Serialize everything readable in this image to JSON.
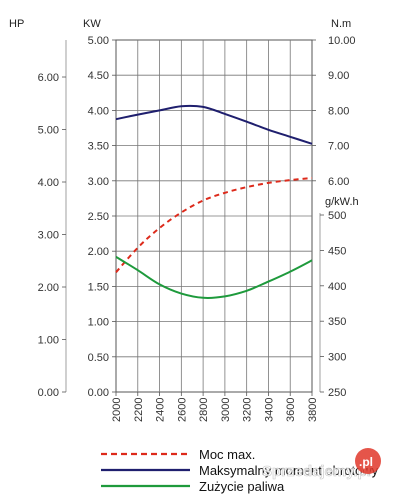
{
  "chart_data": {
    "type": "line",
    "x_title": "",
    "x_ticks": [
      "2000",
      "2200",
      "2400",
      "2600",
      "2800",
      "3000",
      "3200",
      "3400",
      "3600",
      "3800"
    ],
    "x": [
      2000,
      2200,
      2400,
      2600,
      2800,
      3000,
      3200,
      3400,
      3600,
      3800
    ],
    "axes": {
      "hp": {
        "unit": "HP",
        "ticks": [
          "0.00",
          "1.00",
          "2.00",
          "3.00",
          "4.00",
          "5.00",
          "6.00"
        ]
      },
      "kw": {
        "unit": "KW",
        "ticks": [
          "0.00",
          "0.50",
          "1.00",
          "1.50",
          "2.00",
          "2.50",
          "3.00",
          "3.50",
          "4.00",
          "4.50",
          "5.00"
        ],
        "ylim": [
          0,
          5
        ]
      },
      "nm": {
        "unit": "N.m",
        "ticks": [
          "6.00",
          "7.00",
          "8.00",
          "9.00",
          "10.00"
        ],
        "ylim": [
          5,
          10
        ]
      },
      "gkwh": {
        "unit": "g/kW.h",
        "ticks": [
          "250",
          "300",
          "350",
          "400",
          "450",
          "500"
        ],
        "ylim": [
          250,
          500
        ]
      }
    },
    "series": [
      {
        "name": "Moc max.",
        "axis": "kw",
        "color": "#dd2a1b",
        "style": "dashed",
        "values": [
          1.7,
          2.05,
          2.33,
          2.55,
          2.72,
          2.83,
          2.91,
          2.97,
          3.01,
          3.04
        ]
      },
      {
        "name": "Maksymalny moment obrotowy",
        "axis": "nm",
        "color": "#1f1f6e",
        "style": "solid",
        "values": [
          7.75,
          7.88,
          8.0,
          8.12,
          8.1,
          7.9,
          7.68,
          7.45,
          7.25,
          7.05
        ]
      },
      {
        "name": "Zużycie paliwa",
        "axis": "gkwh",
        "color": "#1e9a3c",
        "style": "solid",
        "values": [
          441,
          422,
          402,
          389,
          383,
          385,
          393,
          406,
          420,
          436
        ]
      }
    ],
    "legend_position": "bottom",
    "grid": true
  },
  "legend": {
    "items": [
      "Moc max.",
      "Maksymalny moment obrotowy",
      "Zużycie paliwa"
    ],
    "colors": [
      "#dd2a1b",
      "#1f1f6e",
      "#1e9a3c"
    ]
  },
  "watermark": {
    "text": "Sprzedajemy.pl",
    "badge": ".pl"
  }
}
